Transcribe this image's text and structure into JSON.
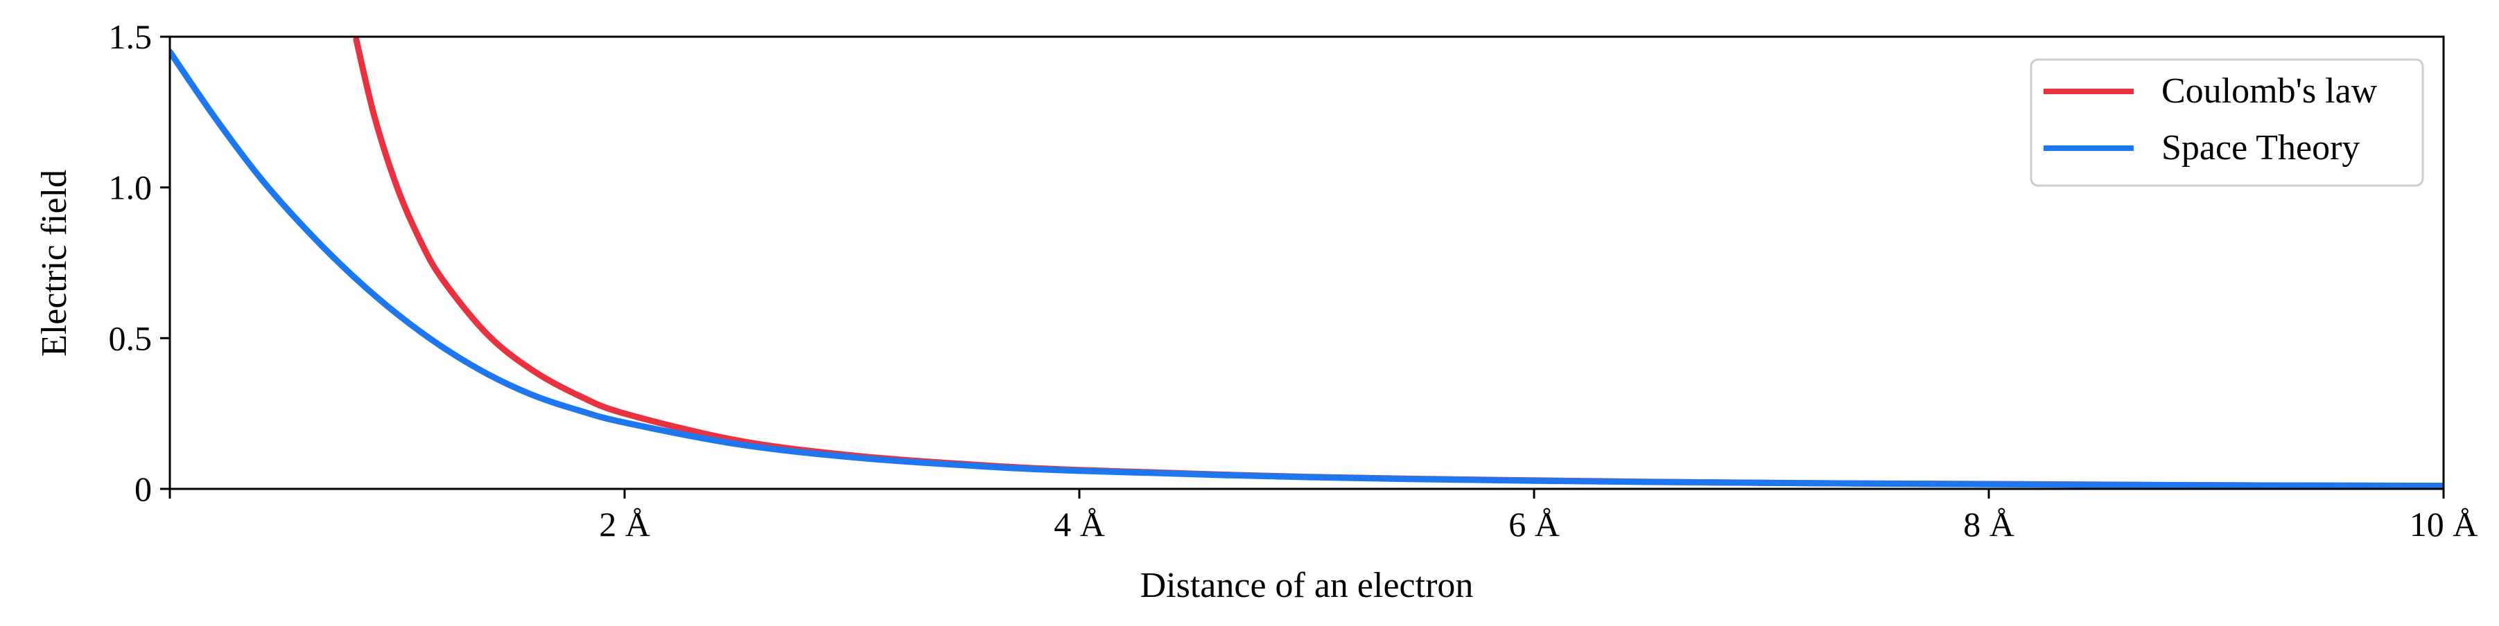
{
  "chart_data": {
    "type": "line",
    "title": "",
    "xlabel": "Distance of an electron",
    "ylabel": "Electric field",
    "xlim": [
      0,
      10
    ],
    "ylim": [
      0,
      1.5
    ],
    "grid": false,
    "legend_position": "top-right",
    "x_ticks": [
      {
        "value": 2,
        "label": "2 Å"
      },
      {
        "value": 4,
        "label": "4 Å"
      },
      {
        "value": 6,
        "label": "6 Å"
      },
      {
        "value": 8,
        "label": "8 Å"
      },
      {
        "value": 10,
        "label": "10 Å"
      }
    ],
    "y_ticks": [
      {
        "value": 0,
        "label": "0"
      },
      {
        "value": 0.5,
        "label": "0.5"
      },
      {
        "value": 1.0,
        "label": "1.0"
      },
      {
        "value": 1.5,
        "label": "1.5"
      }
    ],
    "series": [
      {
        "name": "Coulomb's law",
        "color": "#e8323f",
        "x": [
          0.82,
          0.9,
          1.0,
          1.1,
          1.2,
          1.4,
          1.6,
          1.8,
          2.0,
          2.5,
          3.0,
          3.5,
          4.0,
          5.0,
          6.0,
          7.0,
          8.0,
          9.0,
          10.0
        ],
        "y": [
          1.49,
          1.235,
          1.0,
          0.826,
          0.694,
          0.51,
          0.391,
          0.309,
          0.25,
          0.16,
          0.111,
          0.082,
          0.0625,
          0.04,
          0.028,
          0.02,
          0.016,
          0.012,
          0.01
        ]
      },
      {
        "name": "Space Theory",
        "color": "#1f77f0",
        "x": [
          0.0,
          0.2,
          0.4,
          0.6,
          0.8,
          1.0,
          1.2,
          1.4,
          1.6,
          1.8,
          2.0,
          2.5,
          3.0,
          3.5,
          4.0,
          5.0,
          6.0,
          7.0,
          8.0,
          9.0,
          10.0
        ],
        "y": [
          1.45,
          1.23,
          1.03,
          0.86,
          0.71,
          0.58,
          0.47,
          0.38,
          0.31,
          0.26,
          0.22,
          0.148,
          0.105,
          0.078,
          0.06,
          0.039,
          0.027,
          0.02,
          0.0155,
          0.012,
          0.01
        ]
      }
    ]
  }
}
